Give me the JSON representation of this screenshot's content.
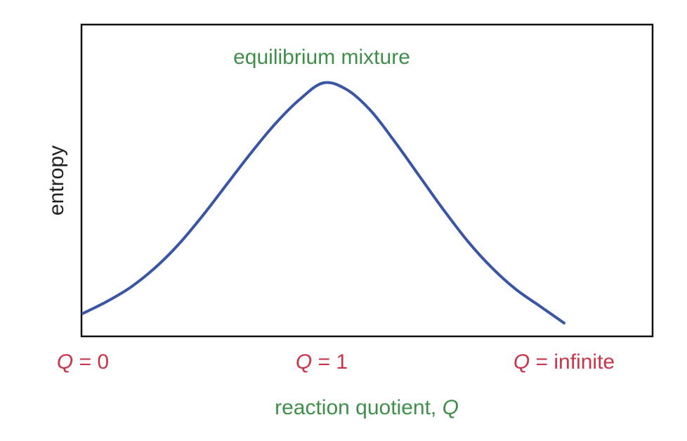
{
  "chart_data": {
    "type": "line",
    "title": "",
    "annotation": "equilibrium mixture",
    "ylabel": "entropy",
    "xlabel": {
      "text": "reaction quotient, ",
      "symbol": "Q"
    },
    "x_ticks": [
      {
        "symbol": "Q",
        "text": " = 0",
        "position": "left"
      },
      {
        "symbol": "Q",
        "text": " = 1",
        "position": "center"
      },
      {
        "symbol": "Q",
        "text": " = infinite",
        "position": "right"
      }
    ],
    "curve": {
      "shape": "bell",
      "peak_at": "Q = 1",
      "x": [
        0,
        0.05,
        0.1,
        0.15,
        0.2,
        0.25,
        0.3,
        0.35,
        0.4,
        0.45,
        0.5,
        0.55,
        0.6,
        0.65,
        0.7,
        0.75,
        0.8,
        0.85,
        0.9,
        0.95,
        1.0
      ],
      "y": [
        0.04,
        0.09,
        0.15,
        0.23,
        0.33,
        0.45,
        0.58,
        0.71,
        0.83,
        0.93,
        1.0,
        0.97,
        0.88,
        0.75,
        0.61,
        0.47,
        0.34,
        0.23,
        0.14,
        0.07,
        0.0
      ]
    },
    "grid": false,
    "legend": false,
    "colors": {
      "curve": "#3a55a4",
      "tick_labels": "#c8354a",
      "axis_title": "#3f8f4a",
      "annotation": "#3f8f4a",
      "ylabel": "#222222",
      "frame": "#111111"
    }
  }
}
